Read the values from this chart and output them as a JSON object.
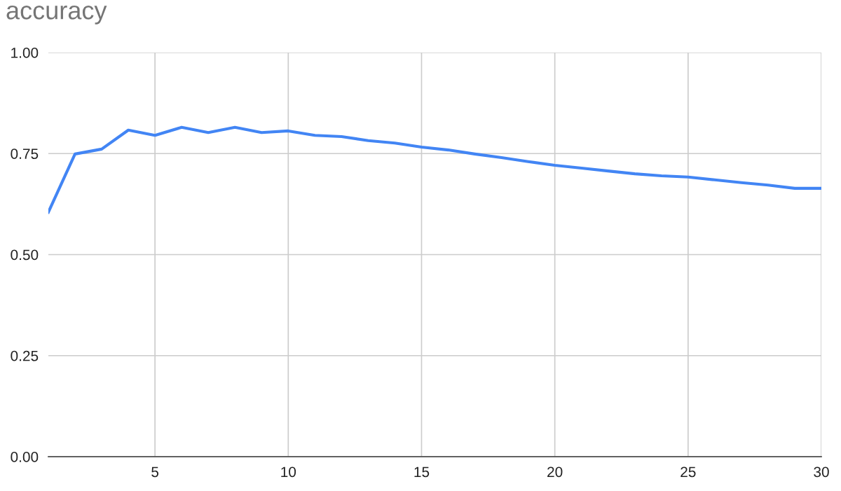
{
  "chart_data": {
    "type": "line",
    "title": "accuracy",
    "x": [
      1,
      2,
      3,
      4,
      5,
      6,
      7,
      8,
      9,
      10,
      11,
      12,
      13,
      14,
      15,
      16,
      17,
      18,
      19,
      20,
      21,
      22,
      23,
      24,
      25,
      26,
      27,
      28,
      29,
      30
    ],
    "series": [
      {
        "color": "#4285f4",
        "values": [
          0.605,
          0.749,
          0.761,
          0.808,
          0.795,
          0.815,
          0.802,
          0.815,
          0.802,
          0.806,
          0.795,
          0.792,
          0.782,
          0.776,
          0.766,
          0.759,
          0.749,
          0.74,
          0.73,
          0.721,
          0.714,
          0.707,
          0.7,
          0.695,
          0.692,
          0.685,
          0.678,
          0.672,
          0.664,
          0.664
        ]
      }
    ],
    "xlim": [
      1,
      30
    ],
    "xticks": [
      5,
      10,
      15,
      20,
      25,
      30
    ],
    "ylim": [
      0,
      1
    ],
    "yticks": [
      {
        "value": 0,
        "label": "0.00"
      },
      {
        "value": 0.25,
        "label": "0.25"
      },
      {
        "value": 0.5,
        "label": "0.50"
      },
      {
        "value": 0.75,
        "label": "0.75"
      },
      {
        "value": 1,
        "label": "1.00"
      }
    ],
    "grid": true,
    "marker": "none",
    "line_style": "solid",
    "legend": false
  }
}
